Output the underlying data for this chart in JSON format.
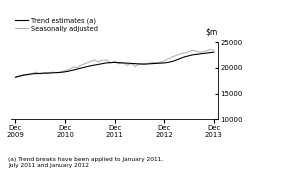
{
  "ylim": [
    10000,
    25000
  ],
  "yticks": [
    10000,
    15000,
    20000,
    25000
  ],
  "xtick_labels": [
    "Dec\n2009",
    "Dec\n2010",
    "Dec\n2011",
    "Dec\n2012",
    "Dec\n2013"
  ],
  "xtick_positions": [
    0,
    12,
    24,
    36,
    48
  ],
  "xlim": [
    -1,
    49
  ],
  "legend_entries": [
    "Trend estimates (a)",
    "Seasonally adjusted"
  ],
  "trend_color": "#000000",
  "seasonal_color": "#aaaaaa",
  "footnote": "(a) Trend breaks have been applied to January 2011,\nJuly 2011 and January 2012",
  "background_color": "#ffffff",
  "trend_data": [
    18200,
    18400,
    18600,
    18750,
    18850,
    18900,
    18950,
    18980,
    19000,
    19050,
    19100,
    19150,
    19250,
    19400,
    19600,
    19800,
    20000,
    20200,
    20400,
    20550,
    20700,
    20850,
    21000,
    21050,
    21100,
    21050,
    21000,
    20950,
    20900,
    20850,
    20800,
    20780,
    20800,
    20850,
    20900,
    20950,
    21000,
    21100,
    21300,
    21600,
    21900,
    22200,
    22400,
    22600,
    22700,
    22800,
    22900,
    23000,
    23100
  ],
  "seasonal_data": [
    18100,
    18500,
    18700,
    18600,
    18900,
    19200,
    18800,
    19100,
    19050,
    19200,
    19100,
    19200,
    19500,
    19700,
    20200,
    20100,
    20600,
    20900,
    21200,
    21600,
    21200,
    21500,
    21600,
    21000,
    21300,
    20800,
    21100,
    20500,
    20900,
    20300,
    20800,
    20700,
    20800,
    21100,
    21000,
    21100,
    21400,
    21800,
    22200,
    22500,
    22800,
    23000,
    23200,
    23500,
    23200,
    23100,
    23300,
    23600,
    23500
  ]
}
